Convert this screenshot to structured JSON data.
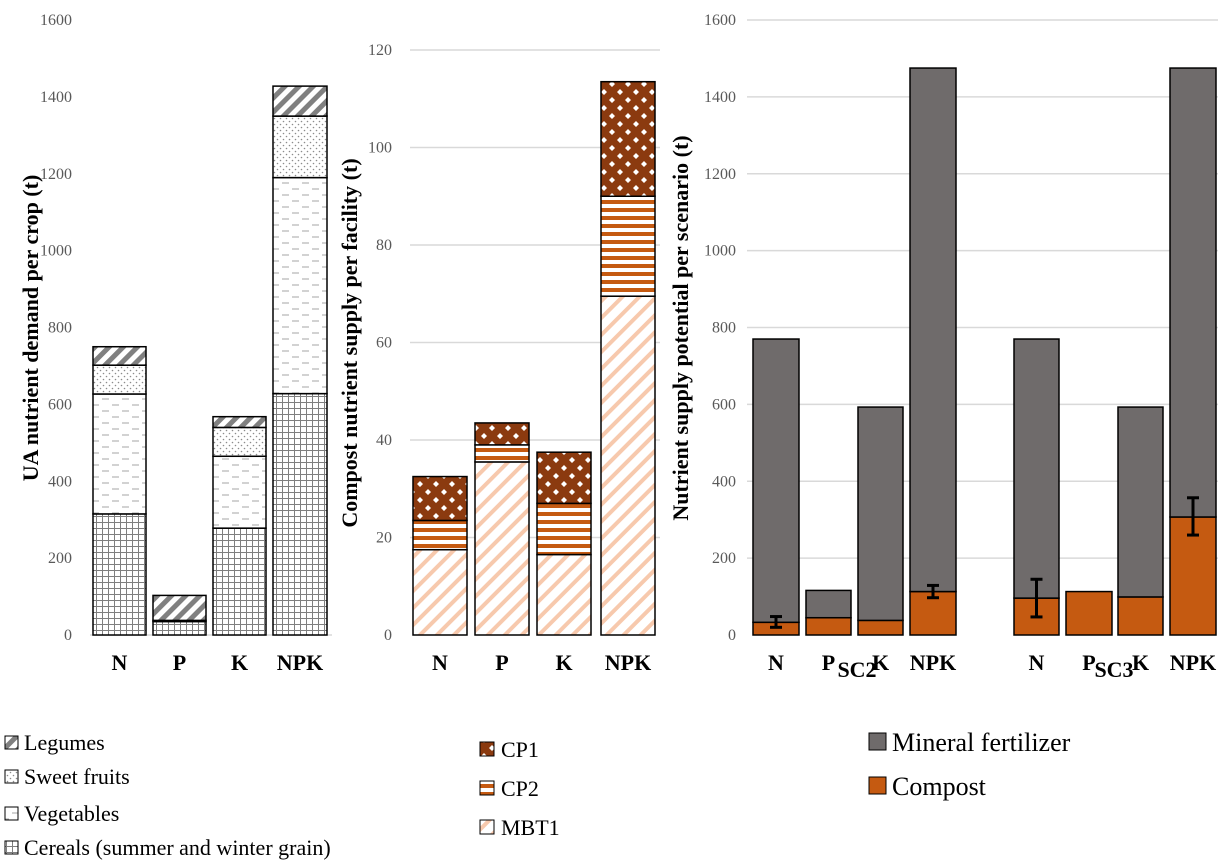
{
  "chart_data": [
    {
      "type": "bar",
      "stacked": true,
      "categories": [
        "N",
        "P",
        "K",
        "NPK"
      ],
      "ylabel": "UA nutrient demand per crop (t)",
      "ylim": [
        0,
        1600
      ],
      "yticks": [
        0,
        200,
        400,
        600,
        800,
        1000,
        1200,
        1400,
        1600
      ],
      "grid": false,
      "legend_position": "bottom",
      "series": [
        {
          "name": "Cereals (summer and winter grain)",
          "values": [
            315,
            35,
            278,
            628
          ],
          "pattern": "grid-squares"
        },
        {
          "name": "Vegetables",
          "values": [
            312,
            3,
            187,
            562
          ],
          "pattern": "dashes"
        },
        {
          "name": "Sweet fruits",
          "values": [
            75,
            0,
            75,
            160
          ],
          "pattern": "dots"
        },
        {
          "name": "Legumes",
          "values": [
            48,
            65,
            28,
            78
          ],
          "pattern": "diagonal-stripes"
        }
      ]
    },
    {
      "type": "bar",
      "stacked": true,
      "categories": [
        "N",
        "P",
        "K",
        "NPK"
      ],
      "ylabel": "Compost nutrient supply per facility (t)",
      "ylim": [
        0,
        120
      ],
      "yticks": [
        0,
        20,
        40,
        60,
        80,
        100,
        120
      ],
      "grid": true,
      "legend_position": "bottom",
      "series": [
        {
          "name": "MBT1",
          "values": [
            17.5,
            35.5,
            16.5,
            69.5
          ],
          "color": "#f7c9ad",
          "pattern": "diagonal-stripes"
        },
        {
          "name": "CP2",
          "values": [
            6.0,
            3.5,
            10.5,
            20.5
          ],
          "color": "#c55a11",
          "pattern": "horizontal-stripes"
        },
        {
          "name": "CP1",
          "values": [
            9.0,
            4.5,
            10.5,
            23.5
          ],
          "color": "#8b3a0f",
          "pattern": "diamond-dots"
        }
      ]
    },
    {
      "type": "bar",
      "stacked": true,
      "groups": [
        "SC2",
        "SC3"
      ],
      "categories": [
        "N",
        "P",
        "K",
        "NPK",
        "N",
        "P",
        "K",
        "NPK"
      ],
      "ylabel": "Nutrient supply potential per scenario (t)",
      "ylim": [
        0,
        1600
      ],
      "yticks": [
        0,
        200,
        400,
        600,
        800,
        1000,
        1200,
        1400,
        1600
      ],
      "grid": true,
      "legend_position": "bottom-right",
      "series": [
        {
          "name": "Compost",
          "values": [
            33,
            45,
            38,
            113,
            96,
            113,
            99,
            307
          ],
          "color": "#c55a11"
        },
        {
          "name": "Mineral fertilizer",
          "values": [
            737,
            71,
            555,
            1362,
            674,
            0,
            494,
            1168
          ],
          "color": "#6f6b6b"
        }
      ],
      "error_bars_compost": [
        [
          20,
          48
        ],
        null,
        null,
        [
          97,
          129
        ],
        [
          47,
          145
        ],
        null,
        null,
        [
          260,
          357
        ]
      ]
    }
  ],
  "legends": {
    "crops": [
      "Legumes",
      "Sweet fruits",
      "Vegetables",
      "Cereals (summer and winter grain)"
    ],
    "facilities": [
      "CP1",
      "CP2",
      "MBT1"
    ],
    "scenario": [
      "Mineral fertilizer",
      "Compost"
    ]
  },
  "colors": {
    "compost": "#c55a11",
    "mineral_fertilizer": "#6f6b6b",
    "mbt1": "#f7c9ad",
    "cp1": "#8b3a0f",
    "gridline": "#d9d9d9"
  }
}
